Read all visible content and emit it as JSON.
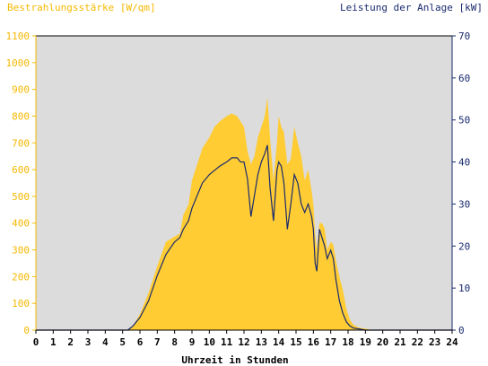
{
  "chart_data": {
    "type": "area",
    "left_axis_title": "Bestrahlungsstärke [W/qm]",
    "right_axis_title": "Leistung der Anlage [kW]",
    "xlabel": "Uhrzeit in Stunden",
    "xlim": [
      0,
      24
    ],
    "ylim_left": [
      0,
      1100
    ],
    "ylim_right": [
      0,
      70
    ],
    "x_ticks": [
      "0",
      "1",
      "2",
      "3",
      "4",
      "5",
      "6",
      "7",
      "8",
      "9",
      "10",
      "11",
      "12",
      "13",
      "14",
      "15",
      "16",
      "17",
      "18",
      "19",
      "20",
      "21",
      "22",
      "23",
      "24"
    ],
    "y_left_ticks": [
      "0",
      "100",
      "200",
      "300",
      "400",
      "500",
      "600",
      "700",
      "800",
      "900",
      "1000",
      "1100"
    ],
    "y_right_ticks": [
      "0",
      "10",
      "20",
      "30",
      "40",
      "50",
      "60",
      "70"
    ],
    "grid": false,
    "colors": {
      "plot_background": "#dcdcdc",
      "irradiance_fill": "#ffcc33",
      "power_line": "#1a2a6e",
      "left_axis": "#f5b800",
      "right_axis": "#1a2a6e",
      "frame": "#000000"
    },
    "series": [
      {
        "axis": "left",
        "style": "area",
        "x": [
          0,
          5.3,
          5.6,
          6,
          6.5,
          7,
          7.5,
          8,
          8.3,
          8.5,
          8.8,
          9,
          9.3,
          9.6,
          10,
          10.3,
          10.6,
          11,
          11.3,
          11.6,
          11.8,
          12,
          12.2,
          12.4,
          12.6,
          12.8,
          13,
          13.2,
          13.35,
          13.5,
          13.7,
          13.9,
          14,
          14.15,
          14.3,
          14.5,
          14.7,
          14.9,
          15.1,
          15.3,
          15.5,
          15.7,
          15.9,
          16,
          16.1,
          16.2,
          16.35,
          16.5,
          16.65,
          16.8,
          17,
          17.15,
          17.3,
          17.5,
          17.7,
          17.9,
          18.1,
          18.3,
          18.6,
          19,
          19.3,
          19.6,
          24
        ],
        "y": [
          0,
          0,
          15,
          60,
          140,
          240,
          330,
          350,
          360,
          430,
          470,
          560,
          620,
          680,
          720,
          760,
          780,
          800,
          810,
          800,
          780,
          760,
          670,
          620,
          650,
          720,
          760,
          800,
          870,
          720,
          560,
          700,
          800,
          760,
          740,
          620,
          640,
          760,
          700,
          650,
          560,
          600,
          520,
          470,
          360,
          300,
          400,
          400,
          380,
          300,
          330,
          320,
          260,
          200,
          150,
          80,
          40,
          20,
          10,
          5,
          2,
          0,
          0
        ]
      },
      {
        "axis": "right",
        "style": "line",
        "x": [
          0,
          5.3,
          5.6,
          6,
          6.5,
          7,
          7.5,
          8,
          8.3,
          8.5,
          8.8,
          9,
          9.3,
          9.6,
          10,
          10.3,
          10.6,
          11,
          11.3,
          11.6,
          11.8,
          12,
          12.2,
          12.4,
          12.6,
          12.8,
          13,
          13.2,
          13.35,
          13.5,
          13.7,
          13.9,
          14,
          14.15,
          14.3,
          14.5,
          14.7,
          14.9,
          15.1,
          15.3,
          15.5,
          15.7,
          15.9,
          16,
          16.1,
          16.2,
          16.35,
          16.5,
          16.65,
          16.8,
          17,
          17.15,
          17.3,
          17.5,
          17.7,
          17.9,
          18.1,
          18.3,
          18.6,
          19,
          19.3,
          19.6,
          24
        ],
        "y": [
          0,
          0,
          1,
          3,
          7,
          13,
          18,
          21,
          22,
          24,
          26,
          29,
          32,
          35,
          37,
          38,
          39,
          40,
          41,
          41,
          40,
          40,
          36,
          27,
          32,
          37,
          40,
          42,
          44,
          34,
          26,
          38,
          40,
          39,
          35,
          24,
          30,
          37,
          35,
          30,
          28,
          30,
          27,
          24,
          16,
          14,
          24,
          22,
          20,
          17,
          19,
          17,
          12,
          7,
          4,
          2,
          1,
          0.5,
          0.3,
          0,
          0,
          0,
          0
        ]
      }
    ]
  }
}
